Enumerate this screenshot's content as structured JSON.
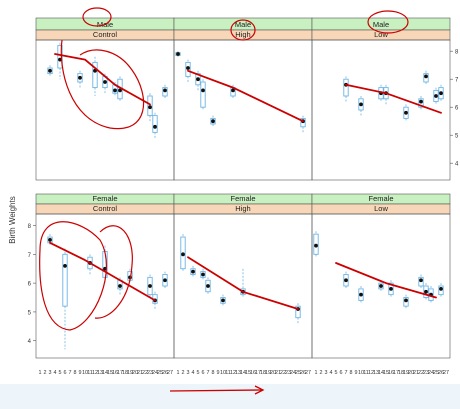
{
  "chart_data": {
    "type": "box",
    "ylabel": "Birth Weights",
    "x_ticks": [
      "1",
      "2",
      "3",
      "4",
      "5",
      "6",
      "7",
      "8",
      "9",
      "10",
      "11",
      "12",
      "13",
      "14",
      "15",
      "16",
      "17",
      "18",
      "19",
      "20",
      "21",
      "22",
      "23",
      "24",
      "25",
      "26",
      "27"
    ],
    "y_ticks": [
      4,
      5,
      6,
      7,
      8
    ],
    "ylim": [
      3.4,
      8.4
    ],
    "grid": false,
    "colors": {
      "box": "#6cb4e4",
      "median_dot": "#111111",
      "strip_top": "#c8f0c0",
      "strip_bottom": "#f7d7b8",
      "annotation": "#cc0000"
    },
    "panels": [
      {
        "row": 0,
        "col": 0,
        "sex": "Male",
        "treatment": "Control",
        "boxes": [
          {
            "x": 3,
            "median": 7.3,
            "q1": 7.2,
            "q3": 7.4,
            "lo": 7.1,
            "hi": 7.5
          },
          {
            "x": 5,
            "median": 7.7,
            "q1": 7.4,
            "q3": 8.2,
            "lo": 7.0,
            "hi": 8.3
          },
          {
            "x": 9,
            "median": 7.05,
            "q1": 6.9,
            "q3": 7.2,
            "lo": 6.7,
            "hi": 7.3
          },
          {
            "x": 12,
            "median": 7.3,
            "q1": 6.7,
            "q3": 7.6,
            "lo": 6.4,
            "hi": 7.8
          },
          {
            "x": 14,
            "median": 6.9,
            "q1": 6.7,
            "q3": 7.1,
            "lo": 6.5,
            "hi": 7.2
          },
          {
            "x": 16,
            "median": 6.6,
            "q1": 6.5,
            "q3": 6.8,
            "lo": 6.4,
            "hi": 6.9
          },
          {
            "x": 17,
            "median": 6.6,
            "q1": 6.3,
            "q3": 7.0,
            "lo": 6.2,
            "hi": 7.1
          },
          {
            "x": 23,
            "median": 6.0,
            "q1": 5.7,
            "q3": 6.4,
            "lo": 5.5,
            "hi": 6.5
          },
          {
            "x": 24,
            "median": 5.3,
            "q1": 5.1,
            "q3": 5.7,
            "lo": 4.9,
            "hi": 5.8
          },
          {
            "x": 26,
            "median": 6.6,
            "q1": 6.4,
            "q3": 6.7,
            "lo": 6.3,
            "hi": 6.8
          }
        ],
        "trend": [
          [
            4,
            7.9
          ],
          [
            10,
            7.7
          ],
          [
            16,
            6.8
          ],
          [
            23,
            6.1
          ]
        ]
      },
      {
        "row": 0,
        "col": 1,
        "sex": "Male",
        "treatment": "High",
        "boxes": [
          {
            "x": 1,
            "median": 7.9,
            "q1": 7.85,
            "q3": 7.95,
            "lo": 7.8,
            "hi": 8.0
          },
          {
            "x": 3,
            "median": 7.4,
            "q1": 7.1,
            "q3": 7.6,
            "lo": 6.9,
            "hi": 7.7
          },
          {
            "x": 5,
            "median": 7.0,
            "q1": 6.8,
            "q3": 7.2,
            "lo": 6.6,
            "hi": 7.3
          },
          {
            "x": 6,
            "median": 6.6,
            "q1": 6.0,
            "q3": 6.9,
            "lo": 5.9,
            "hi": 7.0
          },
          {
            "x": 8,
            "median": 5.5,
            "q1": 5.4,
            "q3": 5.6,
            "lo": 5.3,
            "hi": 5.7
          },
          {
            "x": 12,
            "median": 6.6,
            "q1": 6.4,
            "q3": 6.7,
            "lo": 6.3,
            "hi": 6.8
          },
          {
            "x": 26,
            "median": 5.5,
            "q1": 5.3,
            "q3": 5.6,
            "lo": 5.1,
            "hi": 5.7
          }
        ],
        "trend": [
          [
            3,
            7.3
          ],
          [
            12,
            6.7
          ],
          [
            26,
            5.5
          ]
        ]
      },
      {
        "row": 0,
        "col": 2,
        "sex": "Male",
        "treatment": "Low",
        "boxes": [
          {
            "x": 7,
            "median": 6.8,
            "q1": 6.4,
            "q3": 7.0,
            "lo": 6.2,
            "hi": 7.1
          },
          {
            "x": 10,
            "median": 6.1,
            "q1": 5.9,
            "q3": 6.3,
            "lo": 5.7,
            "hi": 6.4
          },
          {
            "x": 14,
            "median": 6.5,
            "q1": 6.3,
            "q3": 6.7,
            "lo": 6.2,
            "hi": 6.8
          },
          {
            "x": 15,
            "median": 6.5,
            "q1": 6.3,
            "q3": 6.7,
            "lo": 6.1,
            "hi": 6.8
          },
          {
            "x": 19,
            "median": 5.8,
            "q1": 5.6,
            "q3": 6.0,
            "lo": 5.5,
            "hi": 6.1
          },
          {
            "x": 22,
            "median": 6.2,
            "q1": 6.0,
            "q3": 6.3,
            "lo": 5.9,
            "hi": 6.4
          },
          {
            "x": 23,
            "median": 7.1,
            "q1": 6.9,
            "q3": 7.2,
            "lo": 6.8,
            "hi": 7.3
          },
          {
            "x": 25,
            "median": 6.4,
            "q1": 6.2,
            "q3": 6.6,
            "lo": 6.1,
            "hi": 6.7
          },
          {
            "x": 26,
            "median": 6.5,
            "q1": 6.3,
            "q3": 6.7,
            "lo": 6.2,
            "hi": 6.8
          }
        ],
        "trend": [
          [
            7,
            6.8
          ],
          [
            15,
            6.5
          ],
          [
            26,
            5.8
          ]
        ]
      },
      {
        "row": 1,
        "col": 0,
        "sex": "Female",
        "treatment": "Control",
        "boxes": [
          {
            "x": 3,
            "median": 7.5,
            "q1": 7.4,
            "q3": 7.6,
            "lo": 7.3,
            "hi": 7.7
          },
          {
            "x": 6,
            "median": 6.6,
            "q1": 5.2,
            "q3": 7.0,
            "lo": 3.7,
            "hi": 7.2
          },
          {
            "x": 11,
            "median": 6.7,
            "q1": 6.5,
            "q3": 6.9,
            "lo": 6.3,
            "hi": 7.0
          },
          {
            "x": 14,
            "median": 6.5,
            "q1": 6.2,
            "q3": 7.1,
            "lo": 6.0,
            "hi": 7.3
          },
          {
            "x": 17,
            "median": 5.9,
            "q1": 5.8,
            "q3": 6.1,
            "lo": 5.6,
            "hi": 6.2
          },
          {
            "x": 19,
            "median": 6.2,
            "q1": 6.1,
            "q3": 6.4,
            "lo": 6.0,
            "hi": 6.5
          },
          {
            "x": 23,
            "median": 5.9,
            "q1": 5.6,
            "q3": 6.2,
            "lo": 5.5,
            "hi": 6.3
          },
          {
            "x": 24,
            "median": 5.4,
            "q1": 5.3,
            "q3": 5.6,
            "lo": 5.1,
            "hi": 5.7
          },
          {
            "x": 26,
            "median": 6.1,
            "q1": 5.9,
            "q3": 6.3,
            "lo": 5.8,
            "hi": 6.4
          }
        ],
        "trend": [
          [
            3,
            7.4
          ],
          [
            10,
            6.8
          ],
          [
            18,
            6.0
          ],
          [
            24,
            5.4
          ]
        ]
      },
      {
        "row": 1,
        "col": 1,
        "sex": "Female",
        "treatment": "High",
        "boxes": [
          {
            "x": 2,
            "median": 7.0,
            "q1": 6.5,
            "q3": 7.6,
            "lo": 6.4,
            "hi": 7.7
          },
          {
            "x": 4,
            "median": 6.4,
            "q1": 6.3,
            "q3": 6.5,
            "lo": 6.2,
            "hi": 6.6
          },
          {
            "x": 6,
            "median": 6.3,
            "q1": 6.2,
            "q3": 6.4,
            "lo": 6.1,
            "hi": 6.5
          },
          {
            "x": 7,
            "median": 5.9,
            "q1": 5.7,
            "q3": 6.1,
            "lo": 5.6,
            "hi": 6.2
          },
          {
            "x": 10,
            "median": 5.4,
            "q1": 5.3,
            "q3": 5.5,
            "lo": 5.2,
            "hi": 5.6
          },
          {
            "x": 14,
            "median": 5.7,
            "q1": 5.6,
            "q3": 5.8,
            "lo": 5.5,
            "hi": 6.5
          },
          {
            "x": 25,
            "median": 5.1,
            "q1": 4.8,
            "q3": 5.2,
            "lo": 4.6,
            "hi": 5.3
          }
        ],
        "trend": [
          [
            3,
            6.9
          ],
          [
            14,
            5.7
          ],
          [
            25,
            5.1
          ]
        ]
      },
      {
        "row": 1,
        "col": 2,
        "sex": "Female",
        "treatment": "Low",
        "boxes": [
          {
            "x": 1,
            "median": 7.3,
            "q1": 7.0,
            "q3": 7.7,
            "lo": 6.9,
            "hi": 7.8
          },
          {
            "x": 7,
            "median": 6.1,
            "q1": 5.9,
            "q3": 6.3,
            "lo": 5.8,
            "hi": 6.4
          },
          {
            "x": 10,
            "median": 5.6,
            "q1": 5.4,
            "q3": 5.8,
            "lo": 5.3,
            "hi": 5.9
          },
          {
            "x": 14,
            "median": 5.9,
            "q1": 5.8,
            "q3": 6.0,
            "lo": 5.7,
            "hi": 6.1
          },
          {
            "x": 16,
            "median": 5.8,
            "q1": 5.6,
            "q3": 6.0,
            "lo": 5.5,
            "hi": 6.1
          },
          {
            "x": 19,
            "median": 5.4,
            "q1": 5.2,
            "q3": 5.5,
            "lo": 5.1,
            "hi": 5.6
          },
          {
            "x": 22,
            "median": 6.1,
            "q1": 5.9,
            "q3": 6.2,
            "lo": 5.8,
            "hi": 6.3
          },
          {
            "x": 23,
            "median": 5.7,
            "q1": 5.5,
            "q3": 5.9,
            "lo": 5.4,
            "hi": 6.0
          },
          {
            "x": 24,
            "median": 5.6,
            "q1": 5.4,
            "q3": 5.8,
            "lo": 5.3,
            "hi": 5.9
          },
          {
            "x": 26,
            "median": 5.8,
            "q1": 5.6,
            "q3": 5.9,
            "lo": 5.5,
            "hi": 6.0
          }
        ],
        "trend": [
          [
            5,
            6.7
          ],
          [
            15,
            6.0
          ],
          [
            25,
            5.5
          ]
        ]
      }
    ]
  }
}
